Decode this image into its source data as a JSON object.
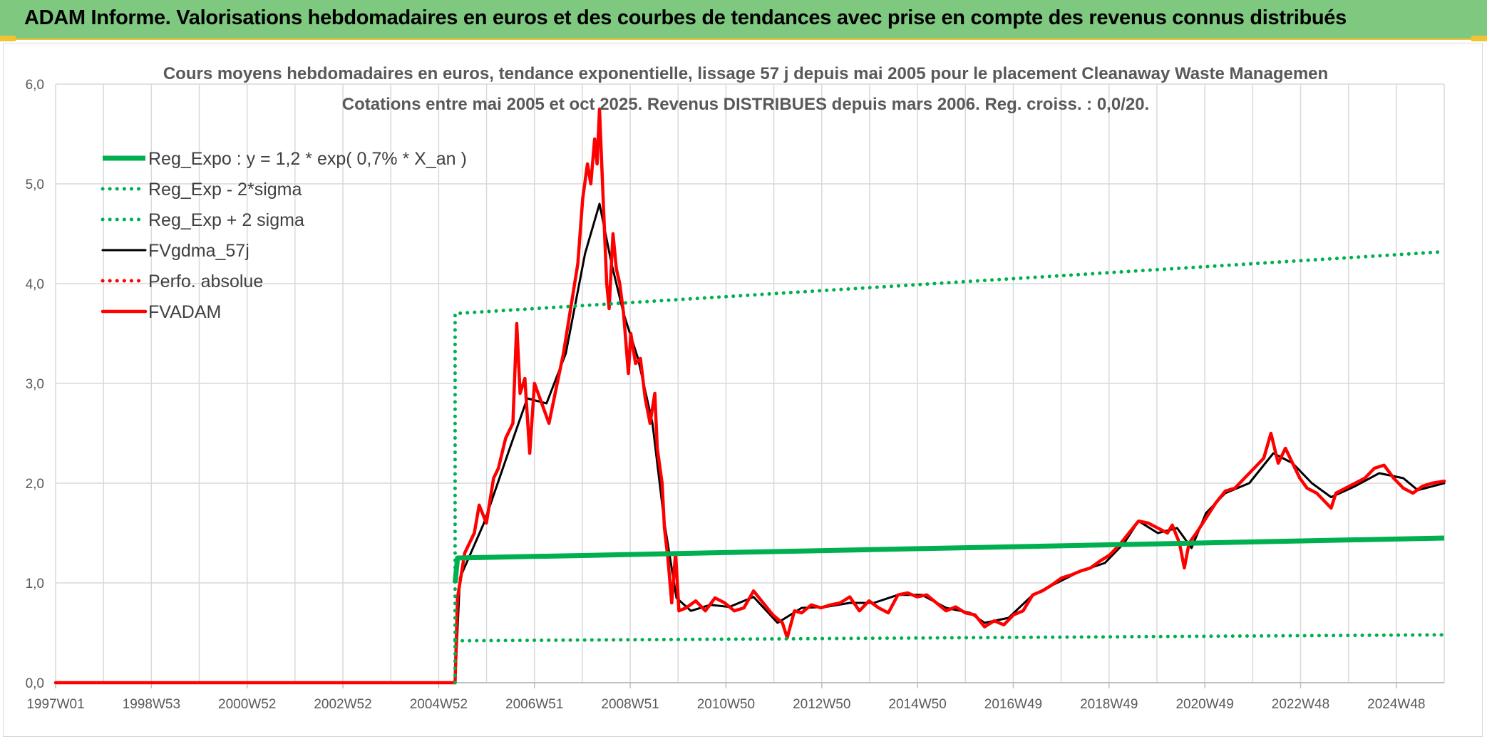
{
  "banner": {
    "title": "ADAM Informe. Valorisations hebdomadaires en euros et des courbes de tendances avec prise en compte des revenus connus distribués"
  },
  "chart_data": {
    "type": "line",
    "title": "Cours moyens hebdomadaires en euros, tendance exponentielle, lissage 57 j depuis mai 2005 pour le placement Cleanaway Waste Managemen",
    "subtitle": "Cotations entre mai 2005 et oct 2025. Revenus DISTRIBUES depuis mars 2006. Reg. croiss. : 0,0/20.",
    "xlabel": "",
    "ylabel": "",
    "x_ticks": [
      "1997W01",
      "1998W53",
      "2000W52",
      "2002W52",
      "2004W52",
      "2006W51",
      "2008W51",
      "2010W50",
      "2012W50",
      "2014W50",
      "2016W49",
      "2018W49",
      "2020W49",
      "2022W48",
      "2024W48"
    ],
    "y_ticks": [
      "0,0",
      "1,0",
      "2,0",
      "3,0",
      "4,0",
      "5,0",
      "6,0"
    ],
    "xlim": [
      1997.0,
      2025.85
    ],
    "ylim": [
      0,
      6
    ],
    "grid": true,
    "legend_position": "top-left",
    "series": [
      {
        "name": "Reg_Expo : y = 1,2 * exp( 0,7% *  X_an )",
        "color": "#00b050",
        "style": "solid",
        "points": [
          [
            2005.3,
            1.0
          ],
          [
            2005.35,
            1.25
          ],
          [
            2025.85,
            1.45
          ]
        ]
      },
      {
        "name": "Reg_Exp - 2*sigma",
        "color": "#00b050",
        "style": "dotted",
        "points": [
          [
            2005.3,
            0.42
          ],
          [
            2025.85,
            0.48
          ]
        ]
      },
      {
        "name": "Reg_Exp + 2 sigma",
        "color": "#00b050",
        "style": "dotted",
        "points": [
          [
            2005.3,
            0.0
          ],
          [
            2005.3,
            3.7
          ],
          [
            2025.85,
            4.32
          ]
        ]
      },
      {
        "name": "FVgdma_57j",
        "color": "#000000",
        "style": "solid",
        "points": [
          [
            1997.0,
            0.0
          ],
          [
            2005.3,
            0.0
          ],
          [
            2005.4,
            1.05
          ],
          [
            2005.9,
            1.6
          ],
          [
            2006.4,
            2.3
          ],
          [
            2006.8,
            2.85
          ],
          [
            2007.2,
            2.8
          ],
          [
            2007.6,
            3.3
          ],
          [
            2008.0,
            4.3
          ],
          [
            2008.3,
            4.8
          ],
          [
            2008.55,
            4.2
          ],
          [
            2008.8,
            3.7
          ],
          [
            2009.1,
            3.25
          ],
          [
            2009.4,
            2.6
          ],
          [
            2009.65,
            1.6
          ],
          [
            2009.9,
            0.85
          ],
          [
            2010.2,
            0.72
          ],
          [
            2010.6,
            0.78
          ],
          [
            2011.0,
            0.76
          ],
          [
            2011.5,
            0.86
          ],
          [
            2012.0,
            0.6
          ],
          [
            2012.5,
            0.75
          ],
          [
            2013.0,
            0.76
          ],
          [
            2013.5,
            0.8
          ],
          [
            2014.0,
            0.8
          ],
          [
            2014.5,
            0.88
          ],
          [
            2015.0,
            0.88
          ],
          [
            2015.5,
            0.75
          ],
          [
            2016.0,
            0.7
          ],
          [
            2016.3,
            0.6
          ],
          [
            2016.8,
            0.65
          ],
          [
            2017.3,
            0.88
          ],
          [
            2017.8,
            1.0
          ],
          [
            2018.3,
            1.12
          ],
          [
            2018.8,
            1.2
          ],
          [
            2019.2,
            1.4
          ],
          [
            2019.5,
            1.62
          ],
          [
            2019.9,
            1.5
          ],
          [
            2020.3,
            1.55
          ],
          [
            2020.6,
            1.35
          ],
          [
            2020.9,
            1.7
          ],
          [
            2021.3,
            1.9
          ],
          [
            2021.8,
            2.0
          ],
          [
            2022.3,
            2.3
          ],
          [
            2022.7,
            2.2
          ],
          [
            2023.1,
            2.0
          ],
          [
            2023.5,
            1.86
          ],
          [
            2024.0,
            1.97
          ],
          [
            2024.5,
            2.1
          ],
          [
            2025.0,
            2.05
          ],
          [
            2025.3,
            1.93
          ],
          [
            2025.85,
            2.0
          ]
        ]
      },
      {
        "name": "Perfo. absolue",
        "color": "#ff0000",
        "style": "dotted",
        "points": []
      },
      {
        "name": "FVADAM",
        "color": "#ff0000",
        "style": "solid",
        "points": [
          [
            1997.0,
            0.0
          ],
          [
            2005.3,
            0.0
          ],
          [
            2005.35,
            0.85
          ],
          [
            2005.5,
            1.3
          ],
          [
            2005.7,
            1.5
          ],
          [
            2005.8,
            1.78
          ],
          [
            2005.95,
            1.6
          ],
          [
            2006.1,
            2.05
          ],
          [
            2006.2,
            2.15
          ],
          [
            2006.35,
            2.45
          ],
          [
            2006.5,
            2.6
          ],
          [
            2006.58,
            3.6
          ],
          [
            2006.65,
            2.9
          ],
          [
            2006.75,
            3.05
          ],
          [
            2006.85,
            2.3
          ],
          [
            2006.95,
            3.0
          ],
          [
            2007.1,
            2.8
          ],
          [
            2007.25,
            2.6
          ],
          [
            2007.4,
            2.95
          ],
          [
            2007.55,
            3.3
          ],
          [
            2007.7,
            3.75
          ],
          [
            2007.85,
            4.2
          ],
          [
            2007.95,
            4.85
          ],
          [
            2008.05,
            5.2
          ],
          [
            2008.12,
            5.0
          ],
          [
            2008.2,
            5.45
          ],
          [
            2008.25,
            5.2
          ],
          [
            2008.3,
            5.75
          ],
          [
            2008.38,
            4.8
          ],
          [
            2008.45,
            4.0
          ],
          [
            2008.5,
            3.75
          ],
          [
            2008.58,
            4.5
          ],
          [
            2008.65,
            4.15
          ],
          [
            2008.72,
            4.0
          ],
          [
            2008.8,
            3.7
          ],
          [
            2008.9,
            3.1
          ],
          [
            2008.95,
            3.5
          ],
          [
            2009.05,
            3.2
          ],
          [
            2009.15,
            3.25
          ],
          [
            2009.25,
            2.85
          ],
          [
            2009.35,
            2.6
          ],
          [
            2009.45,
            2.9
          ],
          [
            2009.5,
            2.35
          ],
          [
            2009.6,
            2.0
          ],
          [
            2009.65,
            1.55
          ],
          [
            2009.72,
            1.25
          ],
          [
            2009.8,
            0.8
          ],
          [
            2009.88,
            1.3
          ],
          [
            2009.95,
            0.72
          ],
          [
            2010.1,
            0.75
          ],
          [
            2010.3,
            0.82
          ],
          [
            2010.5,
            0.72
          ],
          [
            2010.7,
            0.85
          ],
          [
            2010.9,
            0.8
          ],
          [
            2011.1,
            0.72
          ],
          [
            2011.3,
            0.75
          ],
          [
            2011.5,
            0.92
          ],
          [
            2011.7,
            0.8
          ],
          [
            2011.9,
            0.68
          ],
          [
            2012.1,
            0.6
          ],
          [
            2012.2,
            0.45
          ],
          [
            2012.35,
            0.72
          ],
          [
            2012.5,
            0.7
          ],
          [
            2012.7,
            0.78
          ],
          [
            2012.9,
            0.75
          ],
          [
            2013.1,
            0.78
          ],
          [
            2013.3,
            0.8
          ],
          [
            2013.5,
            0.86
          ],
          [
            2013.7,
            0.72
          ],
          [
            2013.9,
            0.82
          ],
          [
            2014.1,
            0.75
          ],
          [
            2014.3,
            0.7
          ],
          [
            2014.5,
            0.88
          ],
          [
            2014.7,
            0.9
          ],
          [
            2014.9,
            0.86
          ],
          [
            2015.1,
            0.88
          ],
          [
            2015.3,
            0.8
          ],
          [
            2015.5,
            0.72
          ],
          [
            2015.7,
            0.76
          ],
          [
            2015.9,
            0.7
          ],
          [
            2016.1,
            0.68
          ],
          [
            2016.3,
            0.56
          ],
          [
            2016.5,
            0.62
          ],
          [
            2016.7,
            0.58
          ],
          [
            2016.9,
            0.68
          ],
          [
            2017.1,
            0.72
          ],
          [
            2017.3,
            0.88
          ],
          [
            2017.5,
            0.92
          ],
          [
            2017.7,
            0.98
          ],
          [
            2017.9,
            1.05
          ],
          [
            2018.1,
            1.08
          ],
          [
            2018.3,
            1.12
          ],
          [
            2018.5,
            1.15
          ],
          [
            2018.7,
            1.22
          ],
          [
            2018.9,
            1.28
          ],
          [
            2019.1,
            1.38
          ],
          [
            2019.3,
            1.5
          ],
          [
            2019.5,
            1.62
          ],
          [
            2019.7,
            1.6
          ],
          [
            2019.9,
            1.55
          ],
          [
            2020.1,
            1.5
          ],
          [
            2020.2,
            1.58
          ],
          [
            2020.35,
            1.4
          ],
          [
            2020.45,
            1.15
          ],
          [
            2020.55,
            1.4
          ],
          [
            2020.7,
            1.5
          ],
          [
            2020.9,
            1.65
          ],
          [
            2021.1,
            1.8
          ],
          [
            2021.3,
            1.92
          ],
          [
            2021.5,
            1.95
          ],
          [
            2021.7,
            2.05
          ],
          [
            2021.9,
            2.15
          ],
          [
            2022.1,
            2.25
          ],
          [
            2022.25,
            2.5
          ],
          [
            2022.4,
            2.2
          ],
          [
            2022.55,
            2.35
          ],
          [
            2022.7,
            2.2
          ],
          [
            2022.85,
            2.05
          ],
          [
            2023.0,
            1.95
          ],
          [
            2023.2,
            1.9
          ],
          [
            2023.4,
            1.8
          ],
          [
            2023.5,
            1.75
          ],
          [
            2023.6,
            1.9
          ],
          [
            2023.8,
            1.95
          ],
          [
            2024.0,
            2.0
          ],
          [
            2024.2,
            2.05
          ],
          [
            2024.4,
            2.15
          ],
          [
            2024.6,
            2.18
          ],
          [
            2024.8,
            2.05
          ],
          [
            2025.0,
            1.95
          ],
          [
            2025.2,
            1.9
          ],
          [
            2025.4,
            1.97
          ],
          [
            2025.6,
            2.0
          ],
          [
            2025.85,
            2.02
          ]
        ]
      }
    ]
  }
}
